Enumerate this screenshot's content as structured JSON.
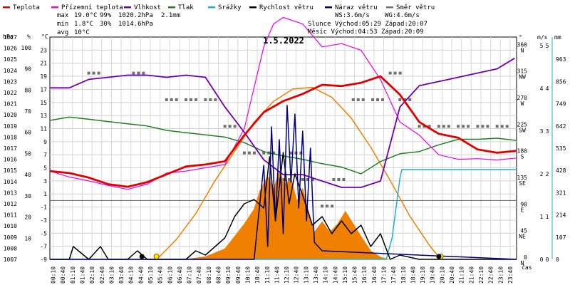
{
  "chart_data": {
    "type": "line",
    "title": "1.5.2022",
    "legend": [
      {
        "label": "Teplota",
        "color": "#e00000"
      },
      {
        "label": "Přízemní teplota",
        "color": "#ee00ee"
      },
      {
        "label": "Vlhkost",
        "color": "#7000b0"
      },
      {
        "label": "Tlak",
        "color": "#208020"
      },
      {
        "label": "Srážky",
        "color": "#20b0d0"
      },
      {
        "label": "Rychlost větru",
        "color": "#000000"
      },
      {
        "label": "Náraz větru",
        "color": "#000080"
      },
      {
        "label": "Směr větru",
        "color": "#707070"
      }
    ],
    "stats": {
      "max": {
        "label": "max",
        "temp": "19.0°C",
        "hum": "99%",
        "press": "1020.2hPa",
        "rain": "2.1mm"
      },
      "min": {
        "label": "min",
        "temp": "1.8°C",
        "hum": "30%",
        "press": "1014.6hPa"
      },
      "avg": {
        "label": "avg",
        "temp": "10°C"
      },
      "ws": "WS:3.6m/s",
      "wg": "WG:4.6m/s",
      "sun": "Slunce Východ:05:29  Západ:20:07",
      "moon": "Měsíc  Východ:04:53  Západ:20:09"
    },
    "axes": {
      "hpa": {
        "label": "hPa",
        "ticks": [
          1007,
          1008,
          1009,
          1010,
          1011,
          1012,
          1013,
          1014,
          1015,
          1016,
          1017,
          1018,
          1019,
          1020,
          1021,
          1022,
          1023,
          1024,
          1025,
          1026,
          1027
        ]
      },
      "pct": {
        "label": "%",
        "ticks": [
          10,
          20,
          30,
          40,
          50,
          60,
          70,
          80,
          90,
          100
        ]
      },
      "celsius": {
        "label": "°C",
        "ticks": [
          -9,
          -7,
          -5,
          -3,
          -1,
          1,
          3,
          5,
          7,
          9,
          11,
          13,
          15,
          17,
          19,
          21,
          23
        ]
      },
      "dir": {
        "label": "°",
        "ticks": [
          {
            "v": "360",
            "d": "N"
          },
          {
            "v": "315",
            "d": "NW"
          },
          {
            "v": "270",
            "d": "W"
          },
          {
            "v": "225",
            "d": "SW"
          },
          {
            "v": "180",
            "d": "S"
          },
          {
            "v": "135",
            "d": "SE"
          },
          {
            "v": "90",
            "d": "E"
          },
          {
            "v": "45",
            "d": "NE"
          },
          {
            "v": "0",
            "d": "N"
          }
        ]
      },
      "ms": {
        "label": "m/s",
        "ticks": [
          0,
          1,
          2,
          3,
          4,
          5
        ]
      },
      "mm": {
        "label": "mm",
        "ticks": [
          0,
          1,
          2,
          3,
          4,
          5
        ]
      },
      "wm": {
        "ticks": [
          0,
          107,
          214,
          321,
          428,
          535,
          642,
          749,
          856,
          963
        ]
      },
      "time_label": "čas",
      "times": [
        "00:10",
        "00:40",
        "01:10",
        "01:40",
        "02:10",
        "02:40",
        "03:10",
        "03:40",
        "04:10",
        "04:40",
        "05:10",
        "05:40",
        "06:10",
        "06:40",
        "07:10",
        "07:40",
        "08:10",
        "08:40",
        "09:10",
        "09:40",
        "10:10",
        "10:40",
        "11:10",
        "11:40",
        "12:10",
        "12:40",
        "13:10",
        "13:40",
        "14:10",
        "14:40",
        "15:10",
        "15:40",
        "16:10",
        "16:40",
        "17:10",
        "17:40",
        "18:10",
        "18:40",
        "19:10",
        "19:40",
        "20:10",
        "20:40",
        "21:10",
        "21:40",
        "22:10",
        "22:40",
        "23:10",
        "23:40"
      ]
    },
    "series": [
      {
        "name": "Teplota",
        "unit": "°C",
        "color": "#e00000",
        "x": [
          0,
          1,
          2,
          3,
          4,
          5,
          6,
          7,
          8,
          9,
          10,
          11,
          12,
          13,
          14,
          15,
          16,
          17,
          18,
          19,
          20,
          21,
          22,
          23,
          24
        ],
        "y": [
          4.5,
          4.2,
          3.5,
          2.5,
          2.1,
          2.8,
          4.0,
          5.2,
          5.5,
          6.0,
          10,
          13.5,
          15.2,
          16.3,
          17.7,
          17.5,
          18.0,
          19.0,
          16.2,
          12.0,
          10.2,
          9.6,
          7.8,
          7.3,
          7.6
        ]
      },
      {
        "name": "Přízemní teplota",
        "unit": "°C",
        "color": "#ee00ee",
        "x": [
          0,
          1,
          2,
          3,
          4,
          5,
          6,
          7,
          8,
          9,
          10,
          11,
          11.5,
          12,
          13,
          14,
          15,
          16,
          17,
          18,
          19,
          20,
          21,
          22,
          23,
          24
        ],
        "y": [
          4.5,
          3.6,
          3.0,
          2.3,
          1.7,
          2.5,
          4.2,
          4.5,
          5.0,
          5.5,
          11,
          23.5,
          27,
          28,
          27,
          23.5,
          24,
          23,
          18.5,
          12.0,
          10.0,
          7.0,
          6.3,
          6.4,
          6.2,
          6.5
        ]
      },
      {
        "name": "Vlhkost",
        "unit": "%",
        "color": "#7000b0",
        "x": [
          0,
          1,
          2,
          3,
          4,
          5,
          6,
          7,
          8,
          9,
          10,
          11,
          12,
          13,
          14,
          15,
          16,
          17,
          18,
          19,
          20,
          21,
          22,
          23,
          23.9
        ],
        "y": [
          81,
          81,
          85,
          86,
          87,
          87,
          86,
          87,
          86,
          72,
          60,
          47,
          40,
          40,
          37,
          34,
          34,
          37,
          72,
          82,
          84,
          86,
          88,
          90,
          95
        ]
      },
      {
        "name": "Tlak",
        "unit": "hPa",
        "color": "#208020",
        "x": [
          0,
          1,
          2,
          3,
          4,
          5,
          6,
          7,
          8,
          9,
          10,
          11,
          12,
          13,
          14,
          15,
          16,
          17,
          18,
          19,
          20,
          21,
          22,
          23,
          24
        ],
        "y": [
          1019.5,
          1019.8,
          1019.6,
          1019.4,
          1019.2,
          1019.0,
          1018.6,
          1018.4,
          1018.2,
          1018.0,
          1017.5,
          1016.7,
          1016.3,
          1016.0,
          1015.6,
          1015.3,
          1014.7,
          1015.8,
          1016.5,
          1016.7,
          1017.3,
          1017.8,
          1017.8,
          1017.9,
          1017.7
        ]
      },
      {
        "name": "Srážky",
        "unit": "mm",
        "color": "#20b0d0",
        "x": [
          0,
          17.3,
          17.6,
          17.8,
          18.0,
          18.1,
          24
        ],
        "y": [
          0,
          0,
          0.5,
          1.2,
          1.9,
          2.1,
          2.1
        ]
      },
      {
        "name": "Rychlost větru",
        "unit": "m/s",
        "color": "#000000",
        "x": [
          0,
          1,
          1.2,
          2,
          2.6,
          3,
          4,
          4.5,
          5,
          6,
          7,
          7.5,
          8,
          9,
          9.5,
          10,
          10.5,
          11,
          11.3,
          11.6,
          12,
          12.3,
          12.6,
          13,
          13.5,
          14,
          14.5,
          15,
          15.5,
          16,
          16.5,
          17,
          17.5,
          18,
          19,
          20,
          21,
          22,
          23,
          24
        ],
        "y": [
          0,
          0,
          0.3,
          0,
          0.3,
          0,
          0,
          0.2,
          0,
          0,
          0,
          0.2,
          0.1,
          0.5,
          1.0,
          1.3,
          1.4,
          1.2,
          2.4,
          0.9,
          2.5,
          1.3,
          2.0,
          1.5,
          0.8,
          1.0,
          0.6,
          0.9,
          0.6,
          0.8,
          0.3,
          0.6,
          0,
          0.1,
          0,
          0,
          0,
          0,
          0,
          0
        ]
      },
      {
        "name": "Náraz větru",
        "unit": "m/s",
        "color": "#000080",
        "x": [
          0,
          10.5,
          11.0,
          11.2,
          11.4,
          11.6,
          11.8,
          12.0,
          12.2,
          12.4,
          12.6,
          12.8,
          13.0,
          13.2,
          13.4,
          13.6,
          14,
          24
        ],
        "y": [
          0,
          0,
          2.2,
          0.3,
          3.1,
          0.9,
          2.8,
          0.6,
          3.6,
          1.8,
          3.4,
          1.2,
          3.0,
          0.9,
          2.6,
          0.4,
          0.2,
          0
        ]
      },
      {
        "name": "Směr větru",
        "unit": "°",
        "color": "#707070",
        "x": [
          2,
          4.3,
          6,
          7,
          8,
          9,
          10,
          11,
          11.8,
          12.4,
          13,
          14,
          14.6,
          15.6,
          16.6,
          17.5,
          18,
          19,
          20,
          21,
          22,
          23
        ],
        "y": [
          315,
          315,
          270,
          270,
          270,
          225,
          180,
          180,
          135,
          180,
          135,
          90,
          135,
          270,
          270,
          315,
          270,
          225,
          225,
          225,
          225,
          225
        ]
      },
      {
        "name": "Solární záření",
        "unit": "W/m²",
        "color": "#f08000",
        "x": [
          5.5,
          6.5,
          7.5,
          8.5,
          9.5,
          10.5,
          11.5,
          12.5,
          13.5,
          14.5,
          15.5,
          16.5,
          17.5,
          18.5,
          19.5,
          20.1
        ],
        "y": [
          0,
          95,
          220,
          380,
          520,
          660,
          760,
          820,
          828,
          780,
          680,
          540,
          380,
          210,
          70,
          0
        ]
      },
      {
        "name": "Sluneční svit",
        "unit": "W/m²",
        "color": "#f08000",
        "x": [
          7.0,
          8,
          9,
          9.5,
          10,
          10.5,
          10.8,
          11.2,
          11.5,
          11.8,
          12.1,
          12.4,
          12.7,
          13,
          13.3,
          13.6,
          14,
          14.4,
          14.8,
          15.2,
          15.6,
          16,
          16.5,
          17,
          17.4
        ],
        "y": [
          0,
          12,
          50,
          110,
          170,
          240,
          330,
          400,
          340,
          420,
          360,
          390,
          280,
          340,
          230,
          130,
          180,
          130,
          170,
          230,
          170,
          110,
          40,
          10,
          0
        ]
      }
    ],
    "ylim": {
      "celsius": [
        -9,
        25
      ],
      "hpa": [
        1007,
        1027
      ],
      "pct": [
        0,
        105
      ],
      "dir": [
        0,
        376
      ],
      "ms": [
        0,
        5.2
      ],
      "mm": [
        0,
        5.2
      ],
      "wm": [
        0,
        1070
      ]
    },
    "xlim": [
      0,
      24
    ],
    "grid": true
  }
}
